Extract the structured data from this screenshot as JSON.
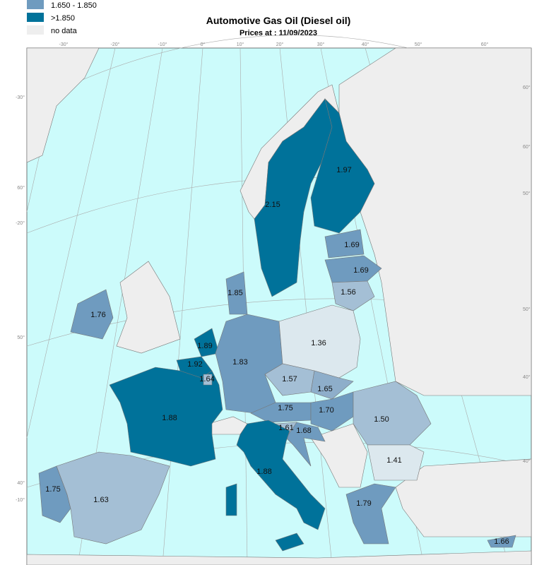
{
  "header": {
    "title": "Automotive Gas Oil (Diesel oil)",
    "subtitle": "Prices at : 11/09/2023"
  },
  "legend": {
    "items": [
      {
        "label": "1.650 - 1.850",
        "color": "#6f9bbf"
      },
      {
        "label": ">1.850",
        "color": "#00729a"
      },
      {
        "label": "no data",
        "color": "#eeeeee"
      }
    ]
  },
  "map": {
    "sea_color": "#ccfbfb",
    "regions": [
      {
        "price": "1.76",
        "color": "#6f9bbf"
      },
      {
        "price": "1.75",
        "color": "#6f9bbf"
      },
      {
        "price": "1.63",
        "color": "#a4bfd5"
      },
      {
        "price": "1.88",
        "color": "#00729a"
      },
      {
        "price": "1.92",
        "color": "#00729a"
      },
      {
        "price": "1.89",
        "color": "#00729a"
      },
      {
        "price": "1.64",
        "color": "#a4bfd5"
      },
      {
        "price": "1.83",
        "color": "#6f9bbf"
      },
      {
        "price": "1.85",
        "color": "#6f9bbf"
      },
      {
        "price": "2.15",
        "color": "#00729a"
      },
      {
        "price": "1.97",
        "color": "#00729a"
      },
      {
        "price": "1.69",
        "color": "#6f9bbf"
      },
      {
        "price": "1.69",
        "color": "#6f9bbf"
      },
      {
        "price": "1.56",
        "color": "#a4bfd5"
      },
      {
        "price": "1.36",
        "color": "#dce8ee"
      },
      {
        "price": "1.57",
        "color": "#a4bfd5"
      },
      {
        "price": "1.65",
        "color": "#8eaeca"
      },
      {
        "price": "1.75",
        "color": "#6f9bbf"
      },
      {
        "price": "1.70",
        "color": "#6f9bbf"
      },
      {
        "price": "1.61",
        "color": "#a4bfd5"
      },
      {
        "price": "1.68",
        "color": "#6f9bbf"
      },
      {
        "price": "1.88",
        "color": "#00729a"
      },
      {
        "price": "1.50",
        "color": "#a4bfd5"
      },
      {
        "price": "1.41",
        "color": "#dce8ee"
      },
      {
        "price": "1.79",
        "color": "#6f9bbf"
      },
      {
        "price": "1.66",
        "color": "#6f9bbf"
      }
    ],
    "graticule": {
      "top": [
        "-30°",
        "-20°",
        "-10°",
        "0°",
        "10°",
        "20°",
        "30°",
        "40°",
        "50°",
        "60°"
      ],
      "left": [
        "-30°",
        "60°",
        "-20°",
        "50°",
        "40°",
        "-10°"
      ],
      "right": [
        "60°",
        "60°",
        "50°",
        "50°",
        "40°",
        "40°"
      ]
    }
  }
}
